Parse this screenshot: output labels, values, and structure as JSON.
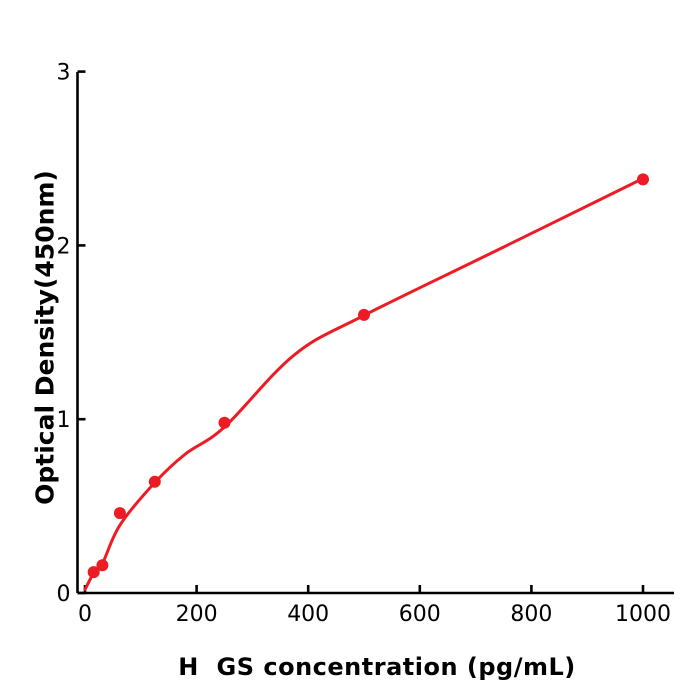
{
  "figure": {
    "background": "#ffffff",
    "accent_color": "#ED1C24",
    "axis_color": "#000000"
  },
  "chart_data": {
    "type": "scatter",
    "title": "",
    "xlabel": "H  GS concentration (pg/mL)",
    "ylabel": "Optical Density(450nm)",
    "x_ticks": [
      0,
      200,
      400,
      600,
      800,
      1000
    ],
    "y_ticks": [
      0,
      1,
      2,
      3
    ],
    "xlim": [
      0,
      1055
    ],
    "ylim": [
      0,
      3
    ],
    "grid": false,
    "legend_position": "none",
    "series_name": "standard curve",
    "points": [
      {
        "x": 15.6,
        "y": 0.12
      },
      {
        "x": 31.25,
        "y": 0.16
      },
      {
        "x": 62.5,
        "y": 0.46
      },
      {
        "x": 125,
        "y": 0.64
      },
      {
        "x": 250,
        "y": 0.98
      },
      {
        "x": 500,
        "y": 1.6
      },
      {
        "x": 1000,
        "y": 2.38
      }
    ],
    "fit_curve": [
      [
        0,
        0.02
      ],
      [
        15.6,
        0.115
      ],
      [
        31.25,
        0.17
      ],
      [
        62.5,
        0.39
      ],
      [
        125,
        0.635
      ],
      [
        180,
        0.8
      ],
      [
        250,
        0.955
      ],
      [
        375,
        1.37
      ],
      [
        500,
        1.597
      ],
      [
        750,
        1.99
      ],
      [
        1000,
        2.385
      ]
    ]
  }
}
